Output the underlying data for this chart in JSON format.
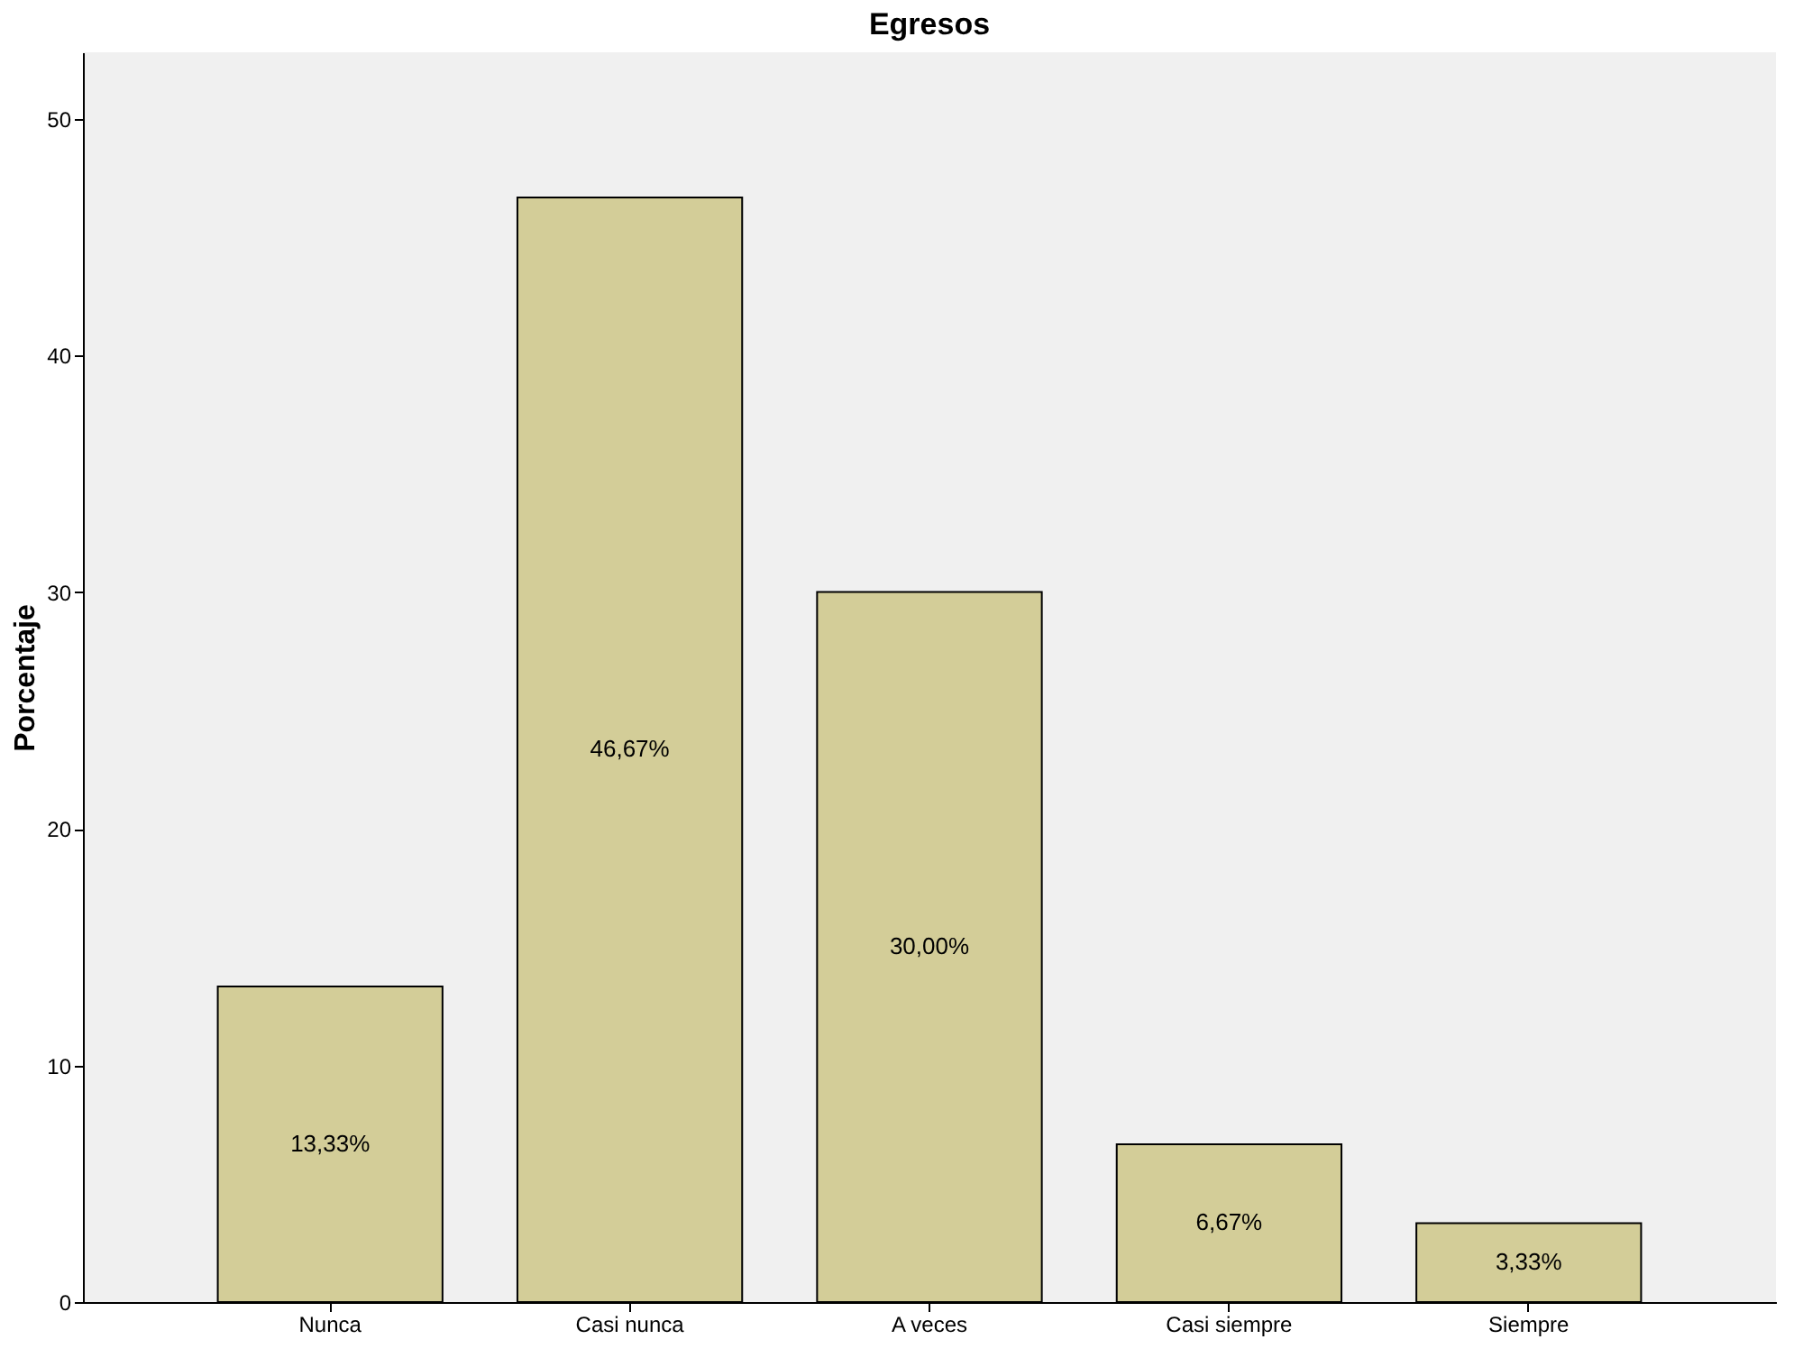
{
  "chart_data": {
    "type": "bar",
    "title": "Egresos",
    "ylabel": "Porcentaje",
    "categories": [
      "Nunca",
      "Casi nunca",
      "A veces",
      "Casi siempre",
      "Siempre"
    ],
    "values": [
      13.33,
      46.67,
      30.0,
      6.67,
      3.33
    ],
    "value_labels": [
      "13,33%",
      "46,67%",
      "30,00%",
      "6,67%",
      "3,33%"
    ],
    "color": "#d3cd98",
    "ylim": [
      0,
      52.8
    ],
    "yticks": [
      0,
      10,
      20,
      30,
      40,
      50
    ],
    "grid": false
  }
}
